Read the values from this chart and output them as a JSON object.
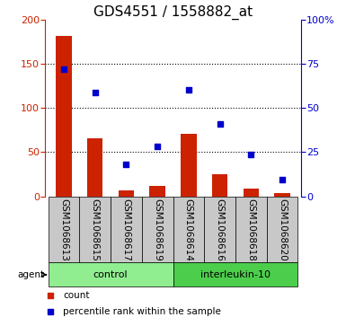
{
  "title": "GDS4551 / 1558882_at",
  "samples": [
    "GSM1068613",
    "GSM1068615",
    "GSM1068617",
    "GSM1068619",
    "GSM1068614",
    "GSM1068616",
    "GSM1068618",
    "GSM1068620"
  ],
  "counts": [
    181,
    66,
    7,
    12,
    71,
    25,
    9,
    4
  ],
  "percentile_ranks": [
    72,
    58.5,
    18,
    28.5,
    60.5,
    41,
    23.5,
    9.5
  ],
  "groups": [
    {
      "label": "control",
      "start": 0,
      "end": 4,
      "color": "#90ee90"
    },
    {
      "label": "interleukin-10",
      "start": 4,
      "end": 8,
      "color": "#4cce4c"
    }
  ],
  "agent_label": "agent",
  "left_ylim": [
    0,
    200
  ],
  "right_ylim": [
    0,
    100
  ],
  "left_yticks": [
    0,
    50,
    100,
    150,
    200
  ],
  "right_yticks": [
    0,
    25,
    50,
    75,
    100
  ],
  "right_yticklabels": [
    "0",
    "25",
    "50",
    "75",
    "100%"
  ],
  "bar_color": "#cc2200",
  "scatter_color": "#0000cc",
  "bar_width": 0.5,
  "legend_count_label": "count",
  "legend_pct_label": "percentile rank within the sample",
  "title_fontsize": 11,
  "tick_label_fontsize": 7.5,
  "axis_label_fontsize": 8,
  "sample_cell_color": "#c8c8c8",
  "dotted_lines": [
    50,
    100,
    150
  ],
  "n_samples": 8
}
